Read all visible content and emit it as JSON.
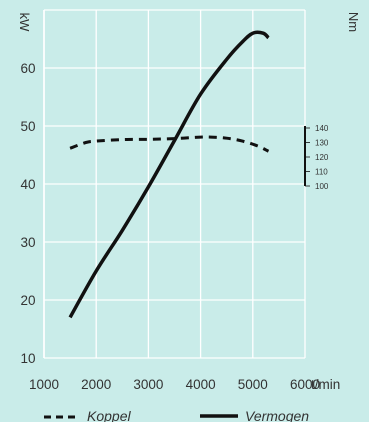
{
  "chart_data": {
    "type": "line",
    "xlabel": "t/min",
    "x_ticks": [
      "1000",
      "2000",
      "3000",
      "4000",
      "5000",
      "6000"
    ],
    "xlim": [
      1000,
      6000
    ],
    "left_axis": {
      "unit": "kW",
      "ylim": [
        10,
        70
      ],
      "ticks": [
        "10",
        "20",
        "30",
        "40",
        "50",
        "60"
      ]
    },
    "right_axis": {
      "unit": "Nm",
      "ylim": [
        100,
        140
      ],
      "ticks": [
        "140",
        "130",
        "120",
        "110",
        "100"
      ]
    },
    "grid": true,
    "series": [
      {
        "name": "Vermogen",
        "axis": "left",
        "color": "#111111",
        "style": "solid",
        "x": [
          1500,
          2000,
          2500,
          3000,
          3500,
          4000,
          4500,
          4800,
          5000,
          5200,
          5300
        ],
        "y": [
          17,
          25,
          32,
          39.5,
          47.5,
          55.5,
          61.5,
          64.5,
          66,
          66,
          65.2
        ]
      },
      {
        "name": "Koppel",
        "axis": "right",
        "color": "#111111",
        "style": "dashed",
        "x": [
          1500,
          1800,
          2000,
          2500,
          3000,
          3500,
          4000,
          4200,
          4500,
          4800,
          5100,
          5300
        ],
        "y": [
          126,
          130,
          131,
          132,
          132.2,
          132.7,
          133.7,
          133.7,
          133,
          131,
          127.5,
          124
        ]
      }
    ],
    "legend": {
      "position": "bottom",
      "entries": [
        "Koppel",
        "Vermogen"
      ]
    }
  }
}
